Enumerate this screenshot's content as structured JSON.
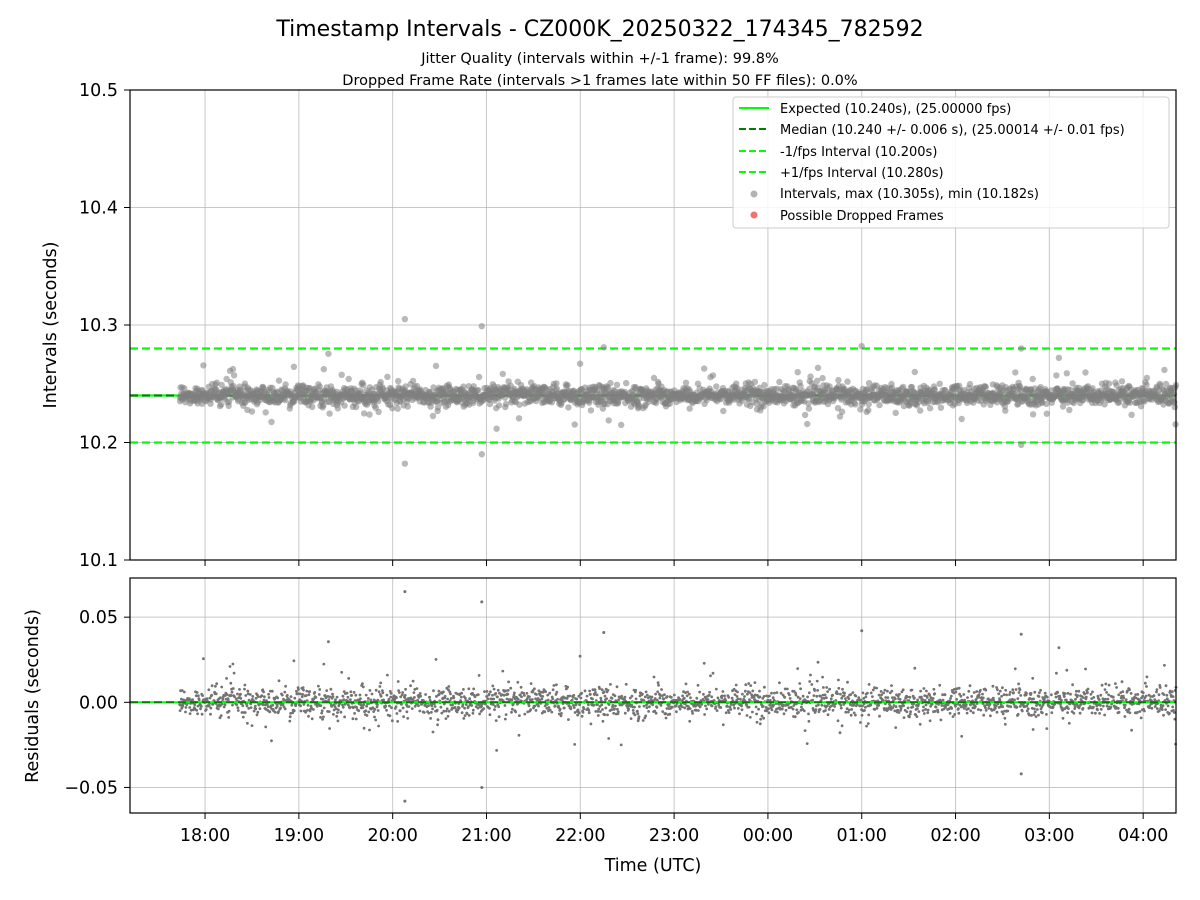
{
  "chart_data": {
    "type": "scatter",
    "title": "Timestamp Intervals - CZ000K_20250322_174345_782592",
    "subtitle_1": "Jitter Quality (intervals within +/-1 frame): 99.8%",
    "subtitle_2": "Dropped Frame Rate (intervals >1 frames late within 50 FF files): 0.0%",
    "xlabel": "Time (UTC)",
    "x_tick_labels": [
      "18:00",
      "19:00",
      "20:00",
      "21:00",
      "22:00",
      "23:00",
      "00:00",
      "01:00",
      "02:00",
      "03:00",
      "04:00"
    ],
    "x_range_hours": [
      17.2,
      28.35
    ],
    "data_x_range_hours": [
      17.73,
      28.35
    ],
    "grid": true,
    "top_panel": {
      "ylabel": "Intervals (seconds)",
      "ylim": [
        10.1,
        10.5
      ],
      "y_ticks": [
        10.1,
        10.2,
        10.3,
        10.4,
        10.5
      ],
      "y_tick_labels": [
        "10.1",
        "10.2",
        "10.3",
        "10.4",
        "10.5"
      ],
      "legend_position": "upper right",
      "series": [
        {
          "name": "Expected (10.240s), (25.00000 fps)",
          "kind": "line",
          "style": "solid",
          "color": "#00ff00",
          "y": 10.24
        },
        {
          "name": "Median (10.240 +/- 0.006 s), (25.00014 +/- 0.01 fps)",
          "kind": "line",
          "style": "dashed",
          "color": "#008000",
          "y": 10.24
        },
        {
          "name": "-1/fps Interval (10.200s)",
          "kind": "line",
          "style": "dashed",
          "color": "#00ff00",
          "y": 10.2
        },
        {
          "name": "+1/fps Interval (10.280s)",
          "kind": "line",
          "style": "dashed",
          "color": "#00ff00",
          "y": 10.28
        },
        {
          "name": "Intervals, max (10.305s), min (10.182s)",
          "kind": "scatter",
          "color": "#808080",
          "max": 10.305,
          "min": 10.182,
          "median": 10.24,
          "std": 0.006
        },
        {
          "name": "Possible Dropped Frames",
          "kind": "scatter",
          "color": "#f06060",
          "count": 0
        }
      ],
      "notable_points": [
        {
          "x_hours": 20.13,
          "y": 10.305
        },
        {
          "x_hours": 20.13,
          "y": 10.182
        },
        {
          "x_hours": 20.95,
          "y": 10.299
        },
        {
          "x_hours": 20.95,
          "y": 10.19
        },
        {
          "x_hours": 25.0,
          "y": 10.282
        },
        {
          "x_hours": 22.25,
          "y": 10.281
        },
        {
          "x_hours": 26.7,
          "y": 10.28
        },
        {
          "x_hours": 26.7,
          "y": 10.198
        }
      ]
    },
    "bottom_panel": {
      "ylabel": "Residuals (seconds)",
      "ylim": [
        -0.065,
        0.073
      ],
      "y_ticks": [
        -0.05,
        0.0,
        0.05
      ],
      "y_tick_labels": [
        "−0.05",
        "0.00",
        "0.05"
      ],
      "series": [
        {
          "name": "Residuals",
          "kind": "scatter",
          "color": "#808080"
        },
        {
          "name": "Zero",
          "kind": "line",
          "style": "solid",
          "color": "#00ff00",
          "y": 0.0
        },
        {
          "name": "Median residual",
          "kind": "line",
          "style": "dashed",
          "color": "#008000",
          "y": 0.0
        }
      ]
    }
  }
}
